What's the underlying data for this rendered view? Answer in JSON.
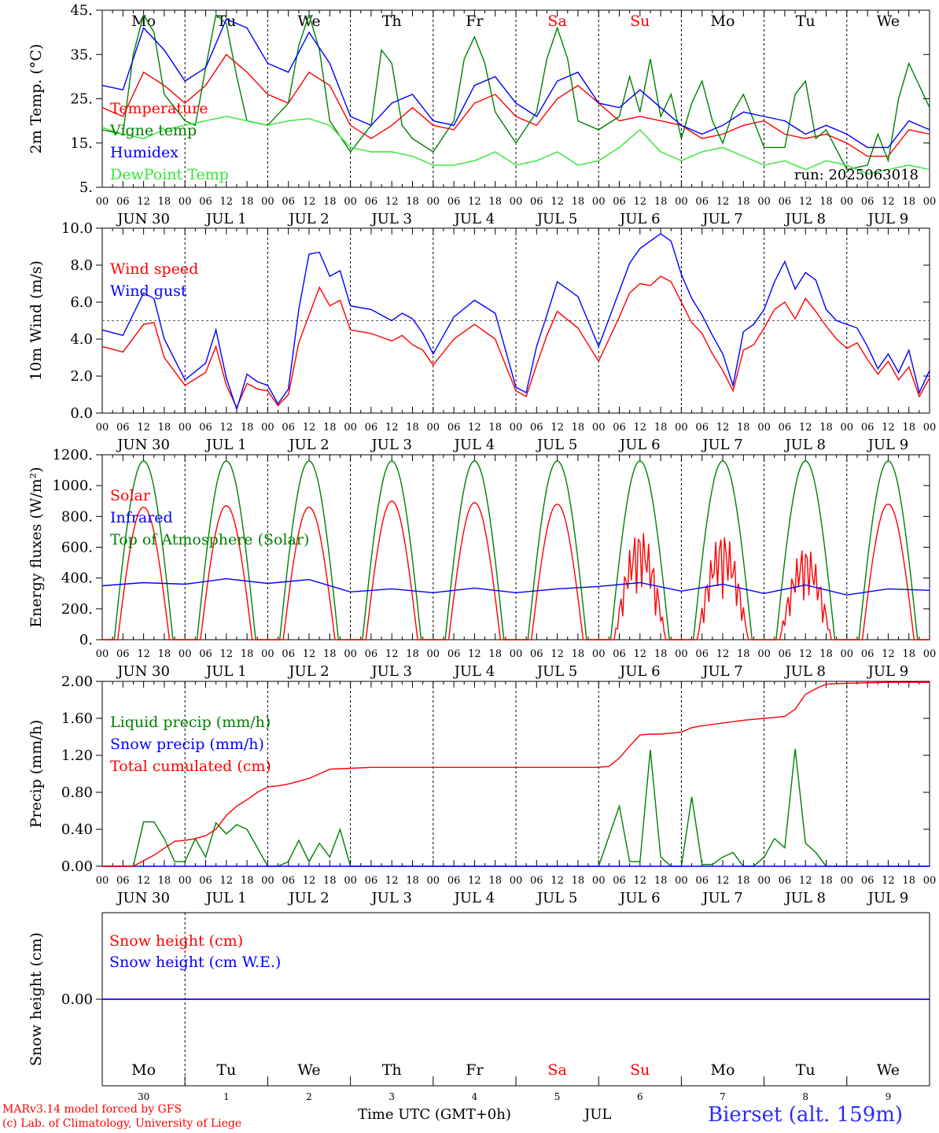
{
  "footer": {
    "credit_line1": "MARv3.14 model forced by GFS",
    "credit_line2": "(c) Lab. of Climatology, University of Liege",
    "time_axis": "Time UTC (GMT+0h)",
    "month": "JUL",
    "station": "Bierset (alt. 159m)"
  },
  "colors": {
    "red": "#ff0000",
    "green": "#008000",
    "blue": "#0000ff",
    "lightgreen": "#32e632",
    "weekend": "#ff0000",
    "dashed_ref": "#666666"
  },
  "days": {
    "weekday_abbr": [
      "Mo",
      "Tu",
      "We",
      "Th",
      "Fr",
      "Sa",
      "Su",
      "Mo",
      "Tu",
      "We"
    ],
    "weekend_flags": [
      false,
      false,
      false,
      false,
      false,
      true,
      true,
      false,
      false,
      false
    ],
    "date_labels": [
      "JUN 30",
      "JUL  1",
      "JUL  2",
      "JUL  3",
      "JUL  4",
      "JUL  5",
      "JUL  6",
      "JUL  7",
      "JUL  8",
      "JUL  9"
    ],
    "hour_ticks": [
      "00",
      "06",
      "12",
      "18"
    ],
    "bottom_day_numbers": [
      "30",
      "1",
      "2",
      "3",
      "4",
      "5",
      "6",
      "7",
      "8",
      "9"
    ]
  },
  "chart_data": [
    {
      "type": "line",
      "ylabel": "2m Temp. (°C)",
      "ylim": [
        5,
        45
      ],
      "yticks": [
        "5.",
        "15.",
        "25.",
        "35.",
        "45."
      ],
      "run_label": "run: 2025063018",
      "x_unit": "hours since JUN 30 00 UTC",
      "series": [
        {
          "name": "Temperature",
          "color": "#ff0000",
          "x": [
            0,
            6,
            12,
            18,
            24,
            30,
            36,
            42,
            48,
            54,
            60,
            66,
            72,
            78,
            84,
            90,
            96,
            102,
            108,
            114,
            120,
            126,
            132,
            138,
            144,
            150,
            156,
            162,
            168,
            174,
            180,
            186,
            192,
            198,
            204,
            210,
            216,
            222,
            228,
            234,
            240
          ],
          "values": [
            23,
            21,
            31,
            28,
            24,
            28,
            35,
            31,
            26,
            24,
            31,
            28,
            19,
            16,
            19,
            23,
            19,
            18,
            24,
            26,
            21,
            19,
            25,
            28,
            24,
            20,
            21,
            20,
            19,
            16,
            17,
            19,
            20,
            17,
            16,
            17,
            15,
            12,
            12,
            18,
            17
          ]
        },
        {
          "name": "Vigne temp",
          "color": "#008000",
          "x": [
            0,
            6,
            9,
            12,
            15,
            18,
            24,
            27,
            30,
            33,
            36,
            39,
            42,
            48,
            54,
            57,
            60,
            63,
            66,
            72,
            78,
            81,
            84,
            87,
            90,
            96,
            102,
            105,
            108,
            111,
            114,
            120,
            126,
            129,
            132,
            135,
            138,
            144,
            150,
            153,
            156,
            159,
            162,
            165,
            168,
            171,
            174,
            177,
            180,
            183,
            186,
            192,
            198,
            201,
            204,
            207,
            210,
            216,
            222,
            225,
            228,
            231,
            234,
            240
          ],
          "values": [
            18,
            17,
            35,
            44,
            40,
            26,
            20,
            19,
            32,
            44,
            42,
            30,
            20,
            19,
            24,
            37,
            44,
            36,
            20,
            13,
            19,
            36,
            33,
            19,
            16,
            13,
            20,
            34,
            39,
            33,
            22,
            15,
            22,
            34,
            41,
            34,
            20,
            18,
            21,
            30,
            22,
            34,
            21,
            26,
            16,
            24,
            29,
            20,
            15,
            22,
            26,
            14,
            14,
            26,
            29,
            16,
            18,
            9,
            10,
            17,
            11,
            25,
            33,
            23
          ]
        },
        {
          "name": "Humidex",
          "color": "#0000ff",
          "x": [
            0,
            6,
            12,
            18,
            24,
            30,
            36,
            42,
            48,
            54,
            60,
            66,
            72,
            78,
            84,
            90,
            96,
            102,
            108,
            114,
            120,
            126,
            132,
            138,
            144,
            150,
            156,
            162,
            168,
            174,
            180,
            186,
            192,
            198,
            204,
            210,
            216,
            222,
            228,
            234,
            240
          ],
          "values": [
            28,
            27,
            41,
            36,
            29,
            32,
            43,
            41,
            33,
            31,
            40,
            33,
            21,
            19,
            24,
            26,
            20,
            19,
            28,
            30,
            24,
            21,
            29,
            31,
            24,
            23,
            27,
            23,
            19,
            17,
            19,
            22,
            21,
            20,
            17,
            19,
            17,
            14,
            14,
            20,
            18
          ]
        },
        {
          "name": "DewPoint Temp",
          "color": "#32e632",
          "x": [
            0,
            6,
            12,
            18,
            24,
            30,
            36,
            42,
            48,
            54,
            60,
            66,
            72,
            78,
            84,
            90,
            96,
            102,
            108,
            114,
            120,
            126,
            132,
            138,
            144,
            150,
            156,
            162,
            168,
            174,
            180,
            186,
            192,
            198,
            204,
            210,
            216,
            222,
            228,
            234,
            240
          ],
          "values": [
            18.5,
            17,
            16,
            18,
            19,
            20,
            21,
            20,
            19,
            20,
            20.5,
            19,
            14,
            13,
            13,
            12,
            10,
            10,
            11,
            13,
            10,
            11,
            13,
            10,
            11,
            14,
            18,
            13,
            11,
            13,
            14,
            12,
            10,
            11,
            9,
            11,
            10,
            8,
            9,
            10,
            9
          ]
        }
      ]
    },
    {
      "type": "line",
      "ylabel": "10m Wind (m/s)",
      "ylim": [
        0,
        10
      ],
      "yticks": [
        "0.0",
        "2.0",
        "4.0",
        "6.0",
        "8.0",
        "10.0"
      ],
      "reference_line": 5,
      "x_unit": "hours since JUN 30 00 UTC",
      "series": [
        {
          "name": "Wind speed",
          "color": "#ff0000",
          "x": [
            0,
            6,
            12,
            15,
            18,
            24,
            30,
            33,
            36,
            39,
            42,
            45,
            48,
            51,
            54,
            57,
            60,
            63,
            66,
            69,
            72,
            78,
            84,
            87,
            90,
            93,
            96,
            102,
            108,
            114,
            120,
            123,
            126,
            129,
            132,
            138,
            144,
            147,
            150,
            153,
            156,
            159,
            162,
            165,
            168,
            171,
            174,
            177,
            180,
            183,
            186,
            189,
            192,
            195,
            198,
            201,
            204,
            207,
            210,
            213,
            216,
            219,
            222,
            225,
            228,
            231,
            234,
            237,
            240
          ],
          "values": [
            3.6,
            3.3,
            4.8,
            4.9,
            3.0,
            1.5,
            2.2,
            3.6,
            1.5,
            0.3,
            1.6,
            1.3,
            1.2,
            0.4,
            1.0,
            3.8,
            5.3,
            6.8,
            5.8,
            6.1,
            4.5,
            4.3,
            3.9,
            4.2,
            3.7,
            3.4,
            2.6,
            4.0,
            4.8,
            4.0,
            1.2,
            0.9,
            2.6,
            4.2,
            5.5,
            4.6,
            2.8,
            4.0,
            5.2,
            6.5,
            7.0,
            6.9,
            7.4,
            7.1,
            6.0,
            4.9,
            4.3,
            3.2,
            2.3,
            1.2,
            3.4,
            3.7,
            4.6,
            5.6,
            6.0,
            5.1,
            6.2,
            5.5,
            4.7,
            4.0,
            3.5,
            3.8,
            2.9,
            2.1,
            2.8,
            1.8,
            2.5,
            0.9,
            1.9
          ]
        },
        {
          "name": "Wind gust",
          "color": "#0000ff",
          "x": [
            0,
            6,
            12,
            15,
            18,
            24,
            30,
            33,
            36,
            39,
            42,
            45,
            48,
            51,
            54,
            57,
            60,
            63,
            66,
            69,
            72,
            78,
            84,
            87,
            90,
            93,
            96,
            102,
            108,
            114,
            120,
            123,
            126,
            129,
            132,
            138,
            144,
            147,
            150,
            153,
            156,
            159,
            162,
            165,
            168,
            171,
            174,
            177,
            180,
            183,
            186,
            189,
            192,
            195,
            198,
            201,
            204,
            207,
            210,
            213,
            216,
            219,
            222,
            225,
            228,
            231,
            234,
            237,
            240
          ],
          "values": [
            4.5,
            4.2,
            6.5,
            6.2,
            4.0,
            1.8,
            2.7,
            4.5,
            1.9,
            0.2,
            2.1,
            1.7,
            1.5,
            0.5,
            1.3,
            5.6,
            8.6,
            8.7,
            7.4,
            7.7,
            5.8,
            5.6,
            5.0,
            5.4,
            5.1,
            4.3,
            3.2,
            5.2,
            6.1,
            5.4,
            1.4,
            1.1,
            3.6,
            5.3,
            7.1,
            6.3,
            3.6,
            5.1,
            6.6,
            8.1,
            8.9,
            9.3,
            9.7,
            9.3,
            7.5,
            6.2,
            5.3,
            4.2,
            3.2,
            1.5,
            4.4,
            4.8,
            5.6,
            7.1,
            8.2,
            6.7,
            7.6,
            7.2,
            5.6,
            5.0,
            4.8,
            4.6,
            3.6,
            2.4,
            3.2,
            2.2,
            3.4,
            1.1,
            2.3
          ]
        }
      ]
    },
    {
      "type": "line",
      "ylabel": "Energy fluxes (W/m²)",
      "ylim": [
        0,
        1200
      ],
      "yticks": [
        "0.",
        "200.",
        "400.",
        "600.",
        "800.",
        "1000.",
        "1200."
      ],
      "x_unit": "hours since JUN 30 00 UTC",
      "series": [
        {
          "name": "Solar",
          "color": "#ff0000",
          "daily_peak": [
            860,
            870,
            860,
            900,
            890,
            880,
            720,
            700,
            610,
            880
          ]
        },
        {
          "name": "Infrared",
          "color": "#0000ff",
          "x": [
            0,
            12,
            24,
            36,
            48,
            60,
            72,
            84,
            96,
            108,
            120,
            132,
            144,
            156,
            168,
            180,
            192,
            204,
            216,
            228,
            240
          ],
          "values": [
            350,
            370,
            360,
            395,
            365,
            390,
            310,
            330,
            305,
            335,
            305,
            330,
            345,
            370,
            315,
            360,
            300,
            355,
            290,
            330,
            320
          ]
        },
        {
          "name": "Top of Atmosphere (Solar)",
          "color": "#008000",
          "daily_peak": [
            1160,
            1160,
            1160,
            1160,
            1160,
            1160,
            1160,
            1160,
            1160,
            1160
          ]
        }
      ]
    },
    {
      "type": "line",
      "ylabel": "Precip (mm/h)",
      "ylim": [
        0,
        2
      ],
      "yticks": [
        "0.00",
        "0.40",
        "0.80",
        "1.20",
        "1.60",
        "2.00"
      ],
      "x_unit": "hours since JUN 30 00 UTC",
      "series": [
        {
          "name": "Liquid precip (mm/h)",
          "color": "#008000",
          "x": [
            0,
            9,
            12,
            15,
            18,
            21,
            24,
            27,
            30,
            33,
            36,
            39,
            42,
            45,
            48,
            51,
            54,
            57,
            60,
            63,
            66,
            69,
            72,
            96,
            144,
            150,
            153,
            156,
            159,
            162,
            165,
            168,
            171,
            174,
            177,
            180,
            183,
            186,
            189,
            192,
            195,
            198,
            201,
            204,
            207,
            210,
            240
          ],
          "values": [
            0,
            0,
            0.48,
            0.48,
            0.3,
            0.05,
            0.05,
            0.3,
            0.1,
            0.47,
            0.35,
            0.45,
            0.4,
            0.2,
            0,
            0,
            0.05,
            0.28,
            0.05,
            0.25,
            0.1,
            0.4,
            0,
            0,
            0,
            0.65,
            0.05,
            0.05,
            1.26,
            0.1,
            0,
            0,
            0.75,
            0.02,
            0.02,
            0.1,
            0.15,
            0,
            0,
            0.1,
            0.3,
            0.2,
            1.27,
            0.25,
            0.15,
            0,
            0
          ]
        },
        {
          "name": "Snow precip (mm/h)",
          "color": "#0000ff",
          "x": [
            0,
            240
          ],
          "values": [
            0,
            0
          ]
        },
        {
          "name": "Total cumulated (cm)",
          "color": "#ff0000",
          "x": [
            0,
            9,
            15,
            21,
            24,
            27,
            30,
            33,
            36,
            39,
            42,
            45,
            48,
            51,
            54,
            57,
            60,
            63,
            66,
            72,
            78,
            96,
            120,
            144,
            147,
            150,
            153,
            156,
            159,
            162,
            168,
            171,
            174,
            180,
            186,
            192,
            195,
            198,
            201,
            204,
            207,
            210,
            216,
            228,
            240
          ],
          "values": [
            0,
            0,
            0.12,
            0.27,
            0.28,
            0.3,
            0.33,
            0.4,
            0.55,
            0.65,
            0.72,
            0.8,
            0.86,
            0.87,
            0.89,
            0.92,
            0.95,
            1.0,
            1.05,
            1.06,
            1.07,
            1.07,
            1.07,
            1.07,
            1.08,
            1.17,
            1.3,
            1.42,
            1.43,
            1.43,
            1.45,
            1.5,
            1.52,
            1.55,
            1.58,
            1.6,
            1.61,
            1.62,
            1.7,
            1.86,
            1.92,
            1.97,
            1.98,
            1.99,
            1.99
          ]
        }
      ]
    },
    {
      "type": "line",
      "ylabel": "Snow height (cm)",
      "yticks": [
        "0.00"
      ],
      "x_unit": "hours since JUN 30 00 UTC",
      "series": [
        {
          "name": "Snow height (cm)",
          "color": "#ff0000",
          "x": [
            0,
            240
          ],
          "values": [
            0,
            0
          ]
        },
        {
          "name": "Snow height (cm W.E.)",
          "color": "#0000ff",
          "x": [
            0,
            240
          ],
          "values": [
            0,
            0
          ]
        }
      ]
    }
  ]
}
